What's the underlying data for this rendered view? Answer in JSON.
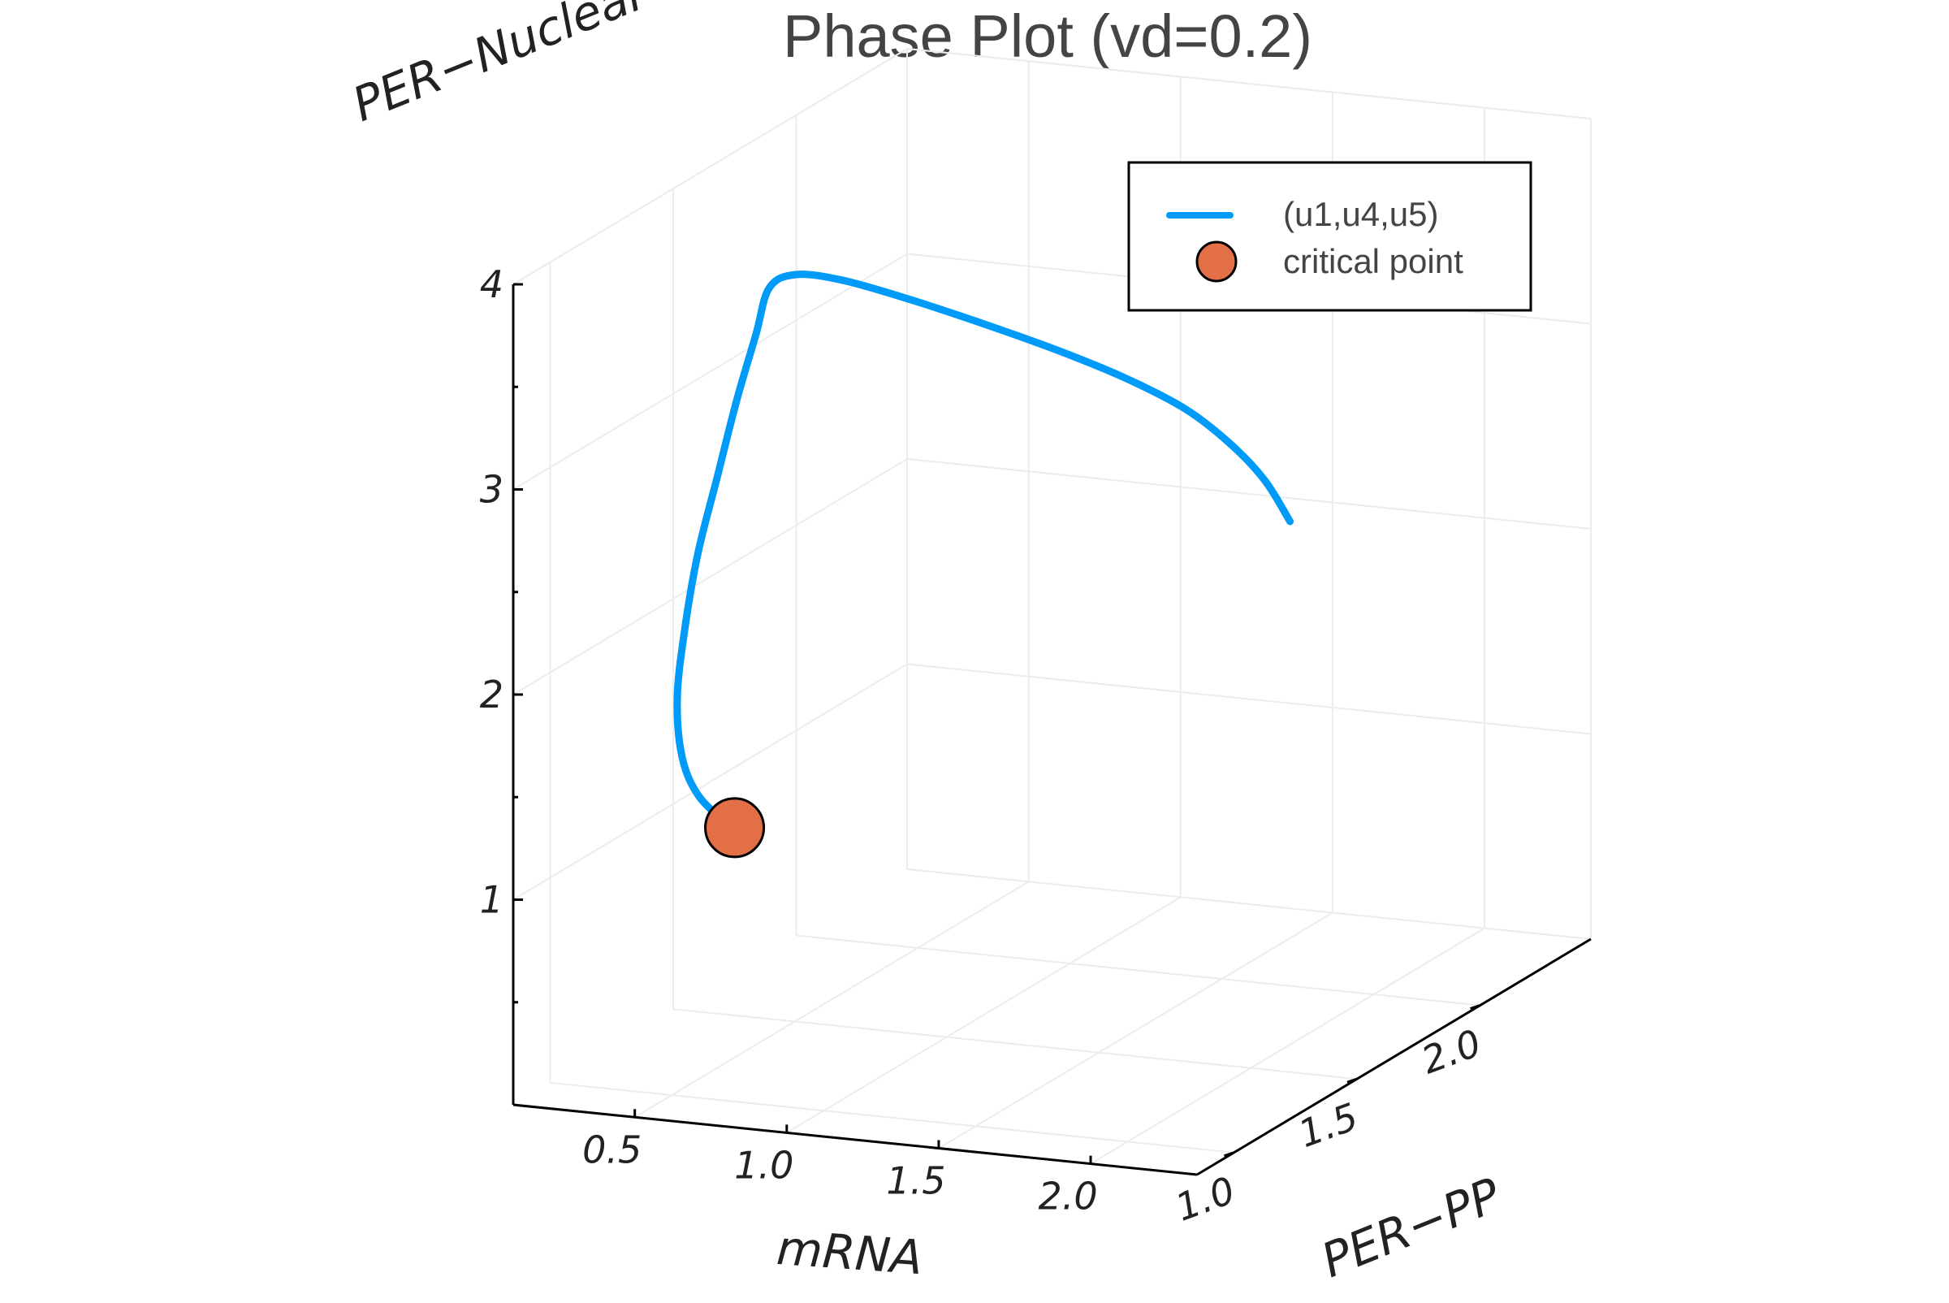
{
  "chart_data": {
    "type": "line",
    "projection": "3d",
    "title": "Phase Plot (vd=0.2)",
    "xlabel": "mRNA",
    "ylabel": "PER−PP",
    "zlabel": "PER−Nuclear",
    "x_ticks": [
      "0.5",
      "1.0",
      "1.5",
      "2.0"
    ],
    "y_ticks": [
      "1.0",
      "1.5",
      "2.0"
    ],
    "z_ticks": [
      "1",
      "2",
      "3",
      "4"
    ],
    "xlim": [
      0.1,
      2.35
    ],
    "ylim": [
      0.85,
      2.45
    ],
    "zlim": [
      0,
      4
    ],
    "grid": true,
    "legend_position": "top-right",
    "series": [
      {
        "name": "(u1,u4,u5)",
        "kind": "line",
        "color": "#009af9",
        "x": [
          0.47,
          0.38,
          0.34,
          0.34,
          0.38,
          0.44,
          0.52,
          0.6,
          0.68,
          0.74,
          0.82,
          0.95,
          1.12,
          1.3,
          1.48,
          1.64,
          1.78,
          1.88,
          1.95,
          2.0
        ],
        "y": [
          1.28,
          1.26,
          1.24,
          1.22,
          1.2,
          1.18,
          1.16,
          1.14,
          1.12,
          1.1,
          1.11,
          1.14,
          1.2,
          1.28,
          1.36,
          1.44,
          1.51,
          1.57,
          1.62,
          1.66
        ],
        "z": [
          1.1,
          1.25,
          1.45,
          1.75,
          2.1,
          2.5,
          2.9,
          3.3,
          3.65,
          3.9,
          3.97,
          3.94,
          3.83,
          3.68,
          3.52,
          3.35,
          3.17,
          2.97,
          2.77,
          2.55
        ]
      },
      {
        "name": "critical point",
        "kind": "scatter",
        "color": "#e26f46",
        "x": [
          0.48
        ],
        "y": [
          1.28
        ],
        "z": [
          1.1
        ]
      }
    ]
  }
}
